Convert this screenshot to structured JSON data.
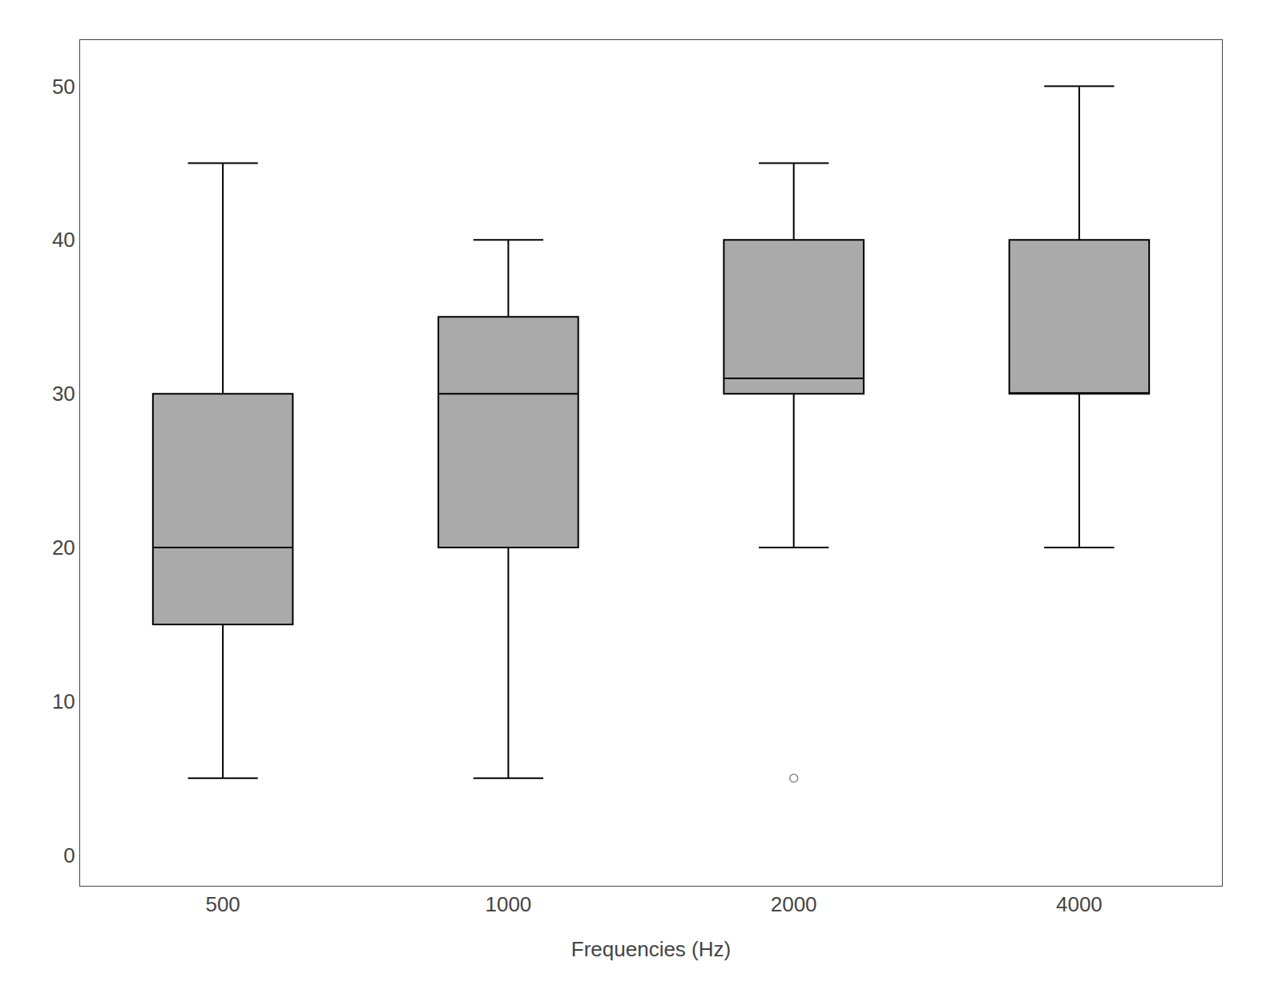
{
  "chart_data": {
    "type": "box",
    "xlabel": "Frequencies (Hz)",
    "categories": [
      "500",
      "1000",
      "2000",
      "4000"
    ],
    "boxes": [
      {
        "whislo": 5,
        "q1": 15,
        "med": 20,
        "q3": 30,
        "whishi": 45,
        "fliers": []
      },
      {
        "whislo": 5,
        "q1": 20,
        "med": 30,
        "q3": 35,
        "whishi": 40,
        "fliers": []
      },
      {
        "whislo": 20,
        "q1": 30,
        "med": 31,
        "q3": 40,
        "whishi": 45,
        "fliers": [
          5
        ]
      },
      {
        "whislo": 20,
        "q1": 30,
        "med": 30,
        "q3": 40,
        "whishi": 50,
        "fliers": []
      }
    ],
    "color": "#aaaaaa",
    "ylim": [
      -2,
      53
    ],
    "yticks": [
      0,
      10,
      20,
      30,
      40,
      50
    ],
    "grid": false
  }
}
